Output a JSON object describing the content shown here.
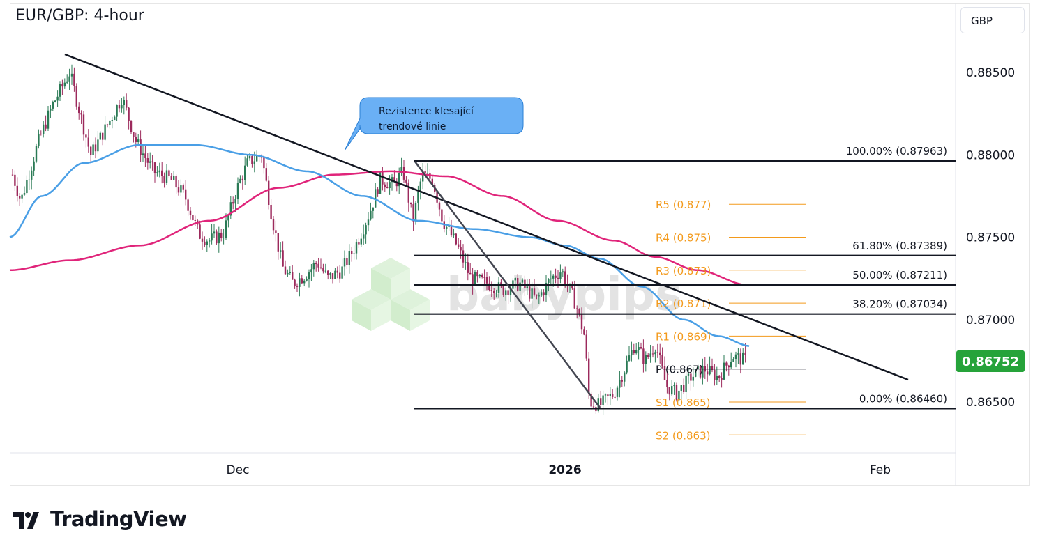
{
  "chart": {
    "title": "EUR/GBP: 4-hour",
    "currency_button": "GBP",
    "current_price": "0.86752",
    "watermark": "babypips",
    "callout": {
      "line1": "Rezistence klesající",
      "line2": "trendové linie"
    }
  },
  "footer": {
    "brand": "TradingView"
  },
  "colors": {
    "up": "#26a69a",
    "down": "#9c2a5c",
    "ema_fast": "#4a9fe6",
    "ema_slow": "#e0247a",
    "pivot": "#f39a1c",
    "price_badge": "#26a33a",
    "callout": "#6ab0f5"
  },
  "chart_data": {
    "type": "candlestick",
    "y_axis": {
      "ticks": [
        "0.88500",
        "0.88000",
        "0.87500",
        "0.87000",
        "0.86500"
      ],
      "range": [
        0.862,
        0.888
      ]
    },
    "x_axis": {
      "ticks": [
        "Dec",
        "2026",
        "Feb"
      ]
    },
    "fibonacci": [
      {
        "label": "100.00% (0.87963)",
        "value": 0.87963
      },
      {
        "label": "61.80% (0.87389)",
        "value": 0.87389
      },
      {
        "label": "50.00% (0.87211)",
        "value": 0.87211
      },
      {
        "label": "38.20% (0.87034)",
        "value": 0.87034
      },
      {
        "label": "0.00% (0.86460)",
        "value": 0.8646
      }
    ],
    "pivots": [
      {
        "label": "R5 (0.877)",
        "value": 0.877
      },
      {
        "label": "R4 (0.875)",
        "value": 0.875
      },
      {
        "label": "R3 (0.873)",
        "value": 0.873
      },
      {
        "label": "R2 (0.871)",
        "value": 0.871
      },
      {
        "label": "R1 (0.869)",
        "value": 0.869
      },
      {
        "label": "P (0.867)",
        "value": 0.867
      },
      {
        "label": "S1 (0.865)",
        "value": 0.865
      },
      {
        "label": "S2 (0.863)",
        "value": 0.863
      }
    ],
    "last_price": 0.86752
  }
}
